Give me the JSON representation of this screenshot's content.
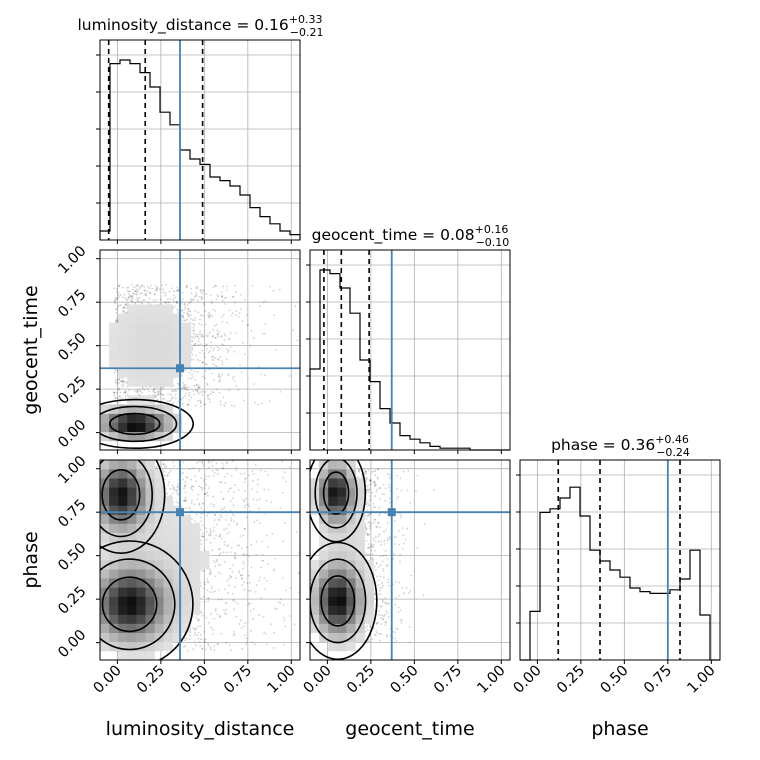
{
  "chart_data": {
    "type": "corner",
    "parameters": [
      "luminosity_distance",
      "geocent_time",
      "phase"
    ],
    "truths": [
      0.36,
      0.37,
      0.75
    ],
    "truth_color": "#4682b4",
    "tick_labels": [
      "0.00",
      "0.25",
      "0.50",
      "0.75",
      "1.00"
    ],
    "range": [
      -0.1,
      1.05
    ],
    "grid": true,
    "diagonal": [
      {
        "parameter": "luminosity_distance",
        "title": "luminosity_distance = 0.16",
        "err_plus": "+0.33",
        "err_minus": "−0.21",
        "quantiles": [
          -0.05,
          0.16,
          0.49
        ],
        "bin_start": -0.1,
        "bin_width": 0.0575,
        "counts": [
          0.05,
          0.98,
          1.0,
          0.98,
          0.93,
          0.85,
          0.71,
          0.64,
          0.5,
          0.45,
          0.42,
          0.35,
          0.33,
          0.3,
          0.25,
          0.18,
          0.13,
          0.09,
          0.05,
          0.03
        ]
      },
      {
        "parameter": "geocent_time",
        "title": "geocent_time = 0.08",
        "err_plus": "+0.16",
        "err_minus": "−0.10",
        "quantiles": [
          -0.02,
          0.08,
          0.24
        ],
        "bin_start": -0.1,
        "bin_width": 0.0575,
        "counts": [
          0.45,
          1.0,
          0.98,
          0.9,
          0.76,
          0.5,
          0.38,
          0.23,
          0.15,
          0.08,
          0.06,
          0.04,
          0.02,
          0.01,
          0.01,
          0.01,
          0,
          0,
          0,
          0
        ]
      },
      {
        "parameter": "phase",
        "title": "phase = 0.36",
        "err_plus": "+0.46",
        "err_minus": "−0.24",
        "quantiles": [
          0.12,
          0.36,
          0.82
        ],
        "bin_start": -0.1,
        "bin_width": 0.0575,
        "counts": [
          0,
          0.27,
          0.82,
          0.84,
          0.9,
          0.96,
          0.8,
          0.61,
          0.55,
          0.5,
          0.46,
          0.4,
          0.38,
          0.37,
          0.37,
          0.39,
          0.45,
          0.61,
          0.25,
          0
        ]
      }
    ],
    "density_panels": [
      {
        "x": "luminosity_distance",
        "y": "geocent_time",
        "peak": [
          0.1,
          0.03
        ],
        "cores": [
          [
            0.1,
            0.05,
            0.12,
            0.05
          ]
        ],
        "samples": [
          [
            0.2,
            0.5,
            0.35,
            0.35,
            1300
          ]
        ]
      },
      {
        "x": "luminosity_distance",
        "y": "phase",
        "peak": [
          0.0,
          0.24
        ],
        "cores": [
          [
            0.07,
            0.22,
            0.13,
            0.13
          ],
          [
            0.02,
            0.85,
            0.09,
            0.12
          ]
        ],
        "samples": [
          [
            0.3,
            0.5,
            0.4,
            0.55,
            1500
          ]
        ]
      },
      {
        "x": "geocent_time",
        "y": "phase",
        "peak": [
          0.02,
          0.22
        ],
        "cores": [
          [
            0.06,
            0.24,
            0.08,
            0.12
          ],
          [
            0.05,
            0.86,
            0.06,
            0.1
          ]
        ],
        "samples": [
          [
            0.12,
            0.5,
            0.18,
            0.5,
            1600
          ]
        ]
      }
    ]
  }
}
